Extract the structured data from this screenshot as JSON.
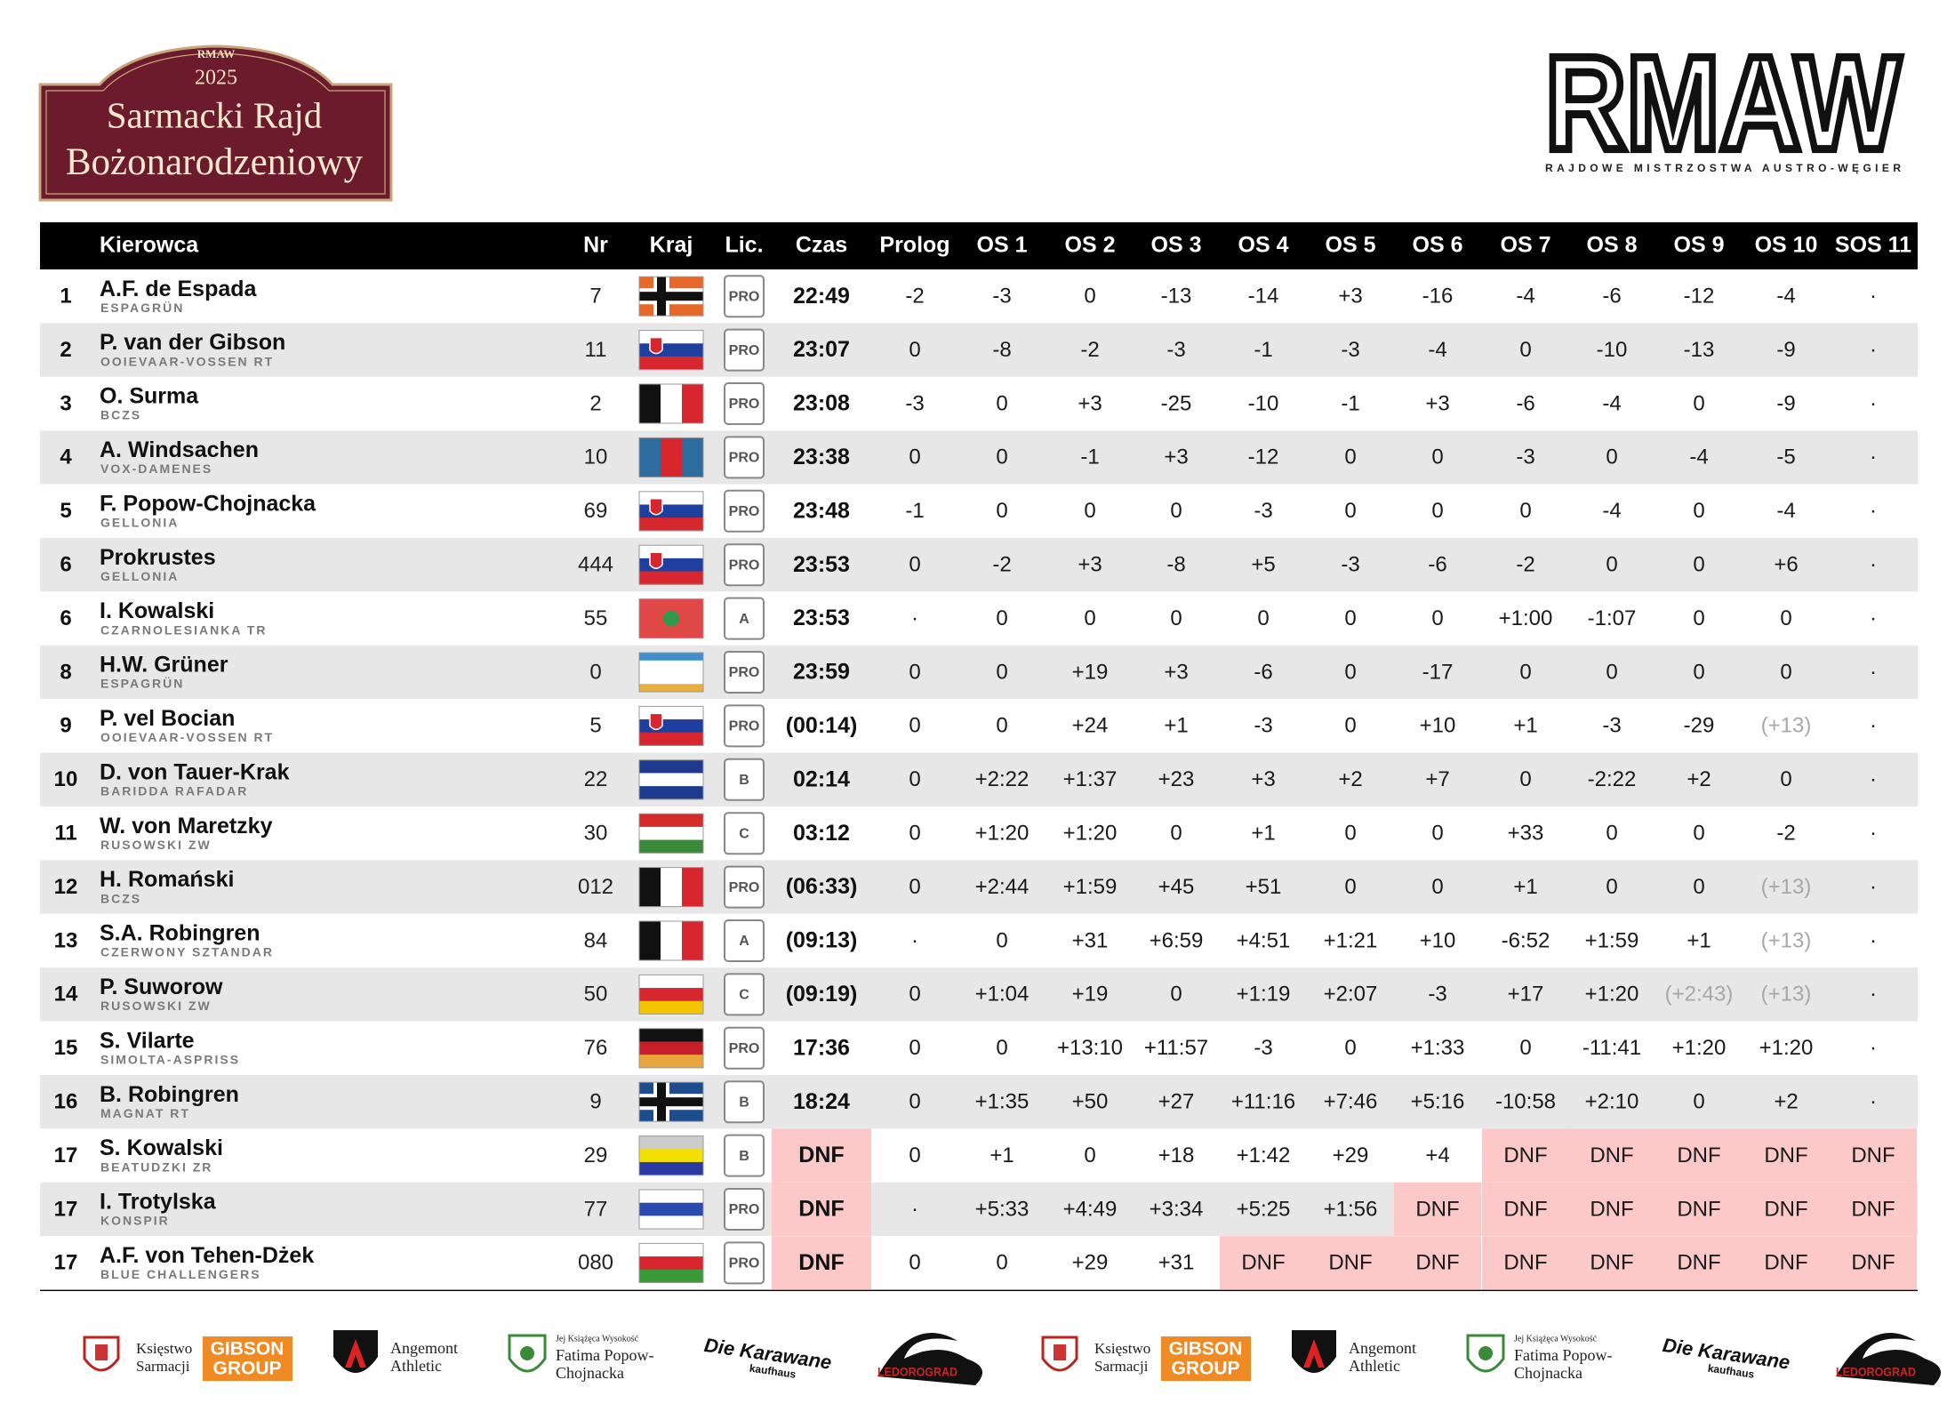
{
  "header": {
    "event_badge": {
      "series": "RMAW",
      "year": "2025",
      "title_line1": "Sarmacki Rajd",
      "title_line2": "Bożonarodzeniowy"
    },
    "logo": {
      "text": "RMAW",
      "subtitle": "RAJDOWE MISTRZOSTWA AUSTRO-WĘGIER"
    }
  },
  "table": {
    "columns": [
      "Kierowca",
      "Nr",
      "Kraj",
      "Lic.",
      "Czas",
      "Prolog",
      "OS 1",
      "OS 2",
      "OS 3",
      "OS 4",
      "OS 5",
      "OS 6",
      "OS 7",
      "OS 8",
      "OS 9",
      "OS 10",
      "SOS 11"
    ],
    "rows": [
      {
        "pos": "1",
        "driver": "A.F. de Espada",
        "team": "ESPAGRÜN",
        "nr": "7",
        "license": "PRO",
        "time": "22:49",
        "stages": [
          "-2",
          "-3",
          "0",
          "-13",
          "-14",
          "+3",
          "-16",
          "-4",
          "-6",
          "-12",
          "-4",
          "·"
        ]
      },
      {
        "pos": "2",
        "driver": "P. van der Gibson",
        "team": "OOIEVAAR-VOSSEN RT",
        "nr": "11",
        "license": "PRO",
        "time": "23:07",
        "stages": [
          "0",
          "-8",
          "-2",
          "-3",
          "-1",
          "-3",
          "-4",
          "0",
          "-10",
          "-13",
          "-9",
          "·"
        ]
      },
      {
        "pos": "3",
        "driver": "O. Surma",
        "team": "BCZS",
        "nr": "2",
        "license": "PRO",
        "time": "23:08",
        "stages": [
          "-3",
          "0",
          "+3",
          "-25",
          "-10",
          "-1",
          "+3",
          "-6",
          "-4",
          "0",
          "-9",
          "·"
        ]
      },
      {
        "pos": "4",
        "driver": "A. Windsachen",
        "team": "VOX-DAMENES",
        "nr": "10",
        "license": "PRO",
        "time": "23:38",
        "stages": [
          "0",
          "0",
          "-1",
          "+3",
          "-12",
          "0",
          "0",
          "-3",
          "0",
          "-4",
          "-5",
          "·"
        ]
      },
      {
        "pos": "5",
        "driver": "F. Popow-Chojnacka",
        "team": "GELLONIA",
        "nr": "69",
        "license": "PRO",
        "time": "23:48",
        "stages": [
          "-1",
          "0",
          "0",
          "0",
          "-3",
          "0",
          "0",
          "0",
          "-4",
          "0",
          "-4",
          "·"
        ]
      },
      {
        "pos": "6",
        "driver": "Prokrustes",
        "team": "GELLONIA",
        "nr": "444",
        "license": "PRO",
        "time": "23:53",
        "stages": [
          "0",
          "-2",
          "+3",
          "-8",
          "+5",
          "-3",
          "-6",
          "-2",
          "0",
          "0",
          "+6",
          "·"
        ]
      },
      {
        "pos": "6",
        "driver": "I. Kowalski",
        "team": "CZARNOLESIANKA TR",
        "nr": "55",
        "license": "A",
        "time": "23:53",
        "stages": [
          "·",
          "0",
          "0",
          "0",
          "0",
          "0",
          "0",
          "+1:00",
          "-1:07",
          "0",
          "0",
          "·"
        ]
      },
      {
        "pos": "8",
        "driver": "H.W. Grüner",
        "team": "ESPAGRÜN",
        "nr": "0",
        "license": "PRO",
        "time": "23:59",
        "stages": [
          "0",
          "0",
          "+19",
          "+3",
          "-6",
          "0",
          "-17",
          "0",
          "0",
          "0",
          "0",
          "·"
        ]
      },
      {
        "pos": "9",
        "driver": "P. vel Bocian",
        "team": "OOIEVAAR-VOSSEN RT",
        "nr": "5",
        "license": "PRO",
        "time": "(00:14)",
        "stages": [
          "0",
          "0",
          "+24",
          "+1",
          "-3",
          "0",
          "+10",
          "+1",
          "-3",
          "-29",
          "(+13)",
          "·"
        ]
      },
      {
        "pos": "10",
        "driver": "D. von Tauer-Krak",
        "team": "BARIDDA RAFADAR",
        "nr": "22",
        "license": "B",
        "time": "02:14",
        "stages": [
          "0",
          "+2:22",
          "+1:37",
          "+23",
          "+3",
          "+2",
          "+7",
          "0",
          "-2:22",
          "+2",
          "0",
          "·"
        ]
      },
      {
        "pos": "11",
        "driver": "W. von Maretzky",
        "team": "RUSOWSKI ZW",
        "nr": "30",
        "license": "C",
        "time": "03:12",
        "stages": [
          "0",
          "+1:20",
          "+1:20",
          "0",
          "+1",
          "0",
          "0",
          "+33",
          "0",
          "0",
          "-2",
          "·"
        ]
      },
      {
        "pos": "12",
        "driver": "H. Romański",
        "team": "BCZS",
        "nr": "012",
        "license": "PRO",
        "time": "(06:33)",
        "stages": [
          "0",
          "+2:44",
          "+1:59",
          "+45",
          "+51",
          "0",
          "0",
          "+1",
          "0",
          "0",
          "(+13)",
          "·"
        ]
      },
      {
        "pos": "13",
        "driver": "S.A. Robingren",
        "team": "CZERWONY SZTANDAR",
        "nr": "84",
        "license": "A",
        "time": "(09:13)",
        "stages": [
          "·",
          "0",
          "+31",
          "+6:59",
          "+4:51",
          "+1:21",
          "+10",
          "-6:52",
          "+1:59",
          "+1",
          "(+13)",
          "·"
        ]
      },
      {
        "pos": "14",
        "driver": "P. Suworow",
        "team": "RUSOWSKI ZW",
        "nr": "50",
        "license": "C",
        "time": "(09:19)",
        "stages": [
          "0",
          "+1:04",
          "+19",
          "0",
          "+1:19",
          "+2:07",
          "-3",
          "+17",
          "+1:20",
          "(+2:43)",
          "(+13)",
          "·"
        ]
      },
      {
        "pos": "15",
        "driver": "S. Vilarte",
        "team": "SIMOLTA-ASPRISS",
        "nr": "76",
        "license": "PRO",
        "time": "17:36",
        "stages": [
          "0",
          "0",
          "+13:10",
          "+11:57",
          "-3",
          "0",
          "+1:33",
          "0",
          "-11:41",
          "+1:20",
          "+1:20",
          "·"
        ]
      },
      {
        "pos": "16",
        "driver": "B. Robingren",
        "team": "MAGNAT RT",
        "nr": "9",
        "license": "B",
        "time": "18:24",
        "stages": [
          "0",
          "+1:35",
          "+50",
          "+27",
          "+11:16",
          "+7:46",
          "+5:16",
          "-10:58",
          "+2:10",
          "0",
          "+2",
          "·"
        ]
      },
      {
        "pos": "17",
        "driver": "S. Kowalski",
        "team": "BEATUDZKI ZR",
        "nr": "29",
        "license": "B",
        "time": "DNF",
        "stages": [
          "0",
          "+1",
          "0",
          "+18",
          "+1:42",
          "+29",
          "+4",
          "DNF",
          "DNF",
          "DNF",
          "DNF",
          "DNF"
        ]
      },
      {
        "pos": "17",
        "driver": "I. Trotylska",
        "team": "KONSPIR",
        "nr": "77",
        "license": "PRO",
        "time": "DNF",
        "stages": [
          "·",
          "+5:33",
          "+4:49",
          "+3:34",
          "+5:25",
          "+1:56",
          "DNF",
          "DNF",
          "DNF",
          "DNF",
          "DNF",
          "DNF"
        ]
      },
      {
        "pos": "17",
        "driver": "A.F. von Tehen-Dżek",
        "team": "BLUE CHALLENGERS",
        "nr": "080",
        "license": "PRO",
        "time": "DNF",
        "stages": [
          "0",
          "0",
          "+29",
          "+31",
          "DNF",
          "DNF",
          "DNF",
          "DNF",
          "DNF",
          "DNF",
          "DNF",
          "DNF"
        ]
      }
    ]
  },
  "footer": {
    "sponsors": [
      {
        "lines": [
          "Księstwo",
          "Sarmacji"
        ]
      },
      {
        "lines": [
          "GIBSON",
          "GROUP"
        ]
      },
      {
        "lines": [
          "Angemont",
          "Athletic"
        ]
      },
      {
        "lines": [
          "Jej Książęca Wysokość",
          "Fatima Popow-",
          "Chojnacka"
        ]
      },
      {
        "lines": [
          "Die Karawane",
          "kaufhaus"
        ]
      },
      {
        "lines": [
          "LEDOROGRAD"
        ]
      }
    ]
  }
}
